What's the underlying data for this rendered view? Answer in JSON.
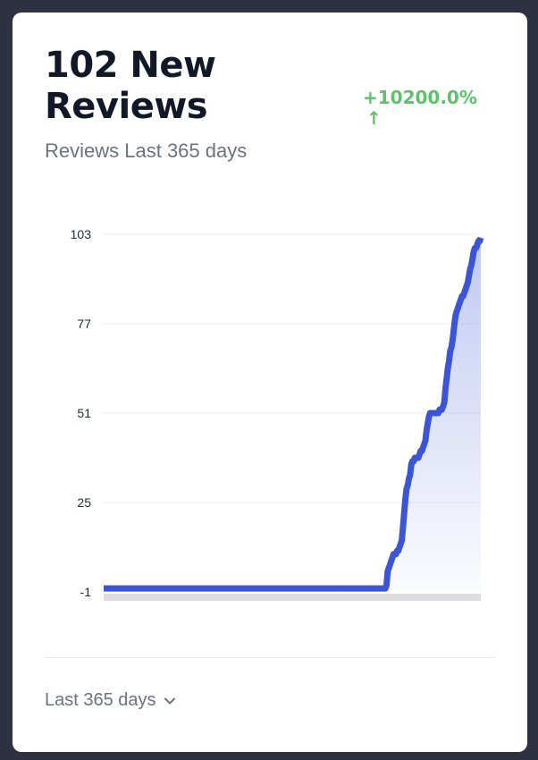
{
  "header": {
    "title": "102 New Reviews",
    "change": "+10200.0%",
    "change_arrow": "↑",
    "subtitle": "Reviews Last 365 days"
  },
  "footer": {
    "range_label": "Last 365 days"
  },
  "colors": {
    "line": "#3b55d6",
    "change_positive": "#5cc36a"
  },
  "chart_data": {
    "type": "area",
    "title": "",
    "xlabel": "",
    "ylabel": "",
    "ylim": [
      -1,
      103
    ],
    "yticks": [
      -1,
      25,
      51,
      77,
      103
    ],
    "grid": true,
    "legend": "none",
    "series": [
      {
        "values": [
          0,
          0,
          0,
          0,
          0,
          0,
          0,
          0,
          0,
          0,
          0,
          0,
          0,
          0,
          0,
          0,
          0,
          0,
          0,
          0,
          0,
          0,
          0,
          0,
          0,
          0,
          0,
          0,
          0,
          0,
          0,
          0,
          0,
          0,
          0,
          0,
          0,
          0,
          0,
          0,
          0,
          0,
          0,
          0,
          0,
          0,
          0,
          0,
          0,
          0,
          0,
          0,
          0,
          0,
          0,
          0,
          0,
          0,
          0,
          0,
          0,
          0,
          0,
          0,
          0,
          0,
          0,
          0,
          0,
          0,
          0,
          0,
          0,
          0,
          0,
          0,
          0,
          0,
          0,
          0,
          0,
          0,
          0,
          0,
          0,
          0,
          0,
          0,
          0,
          0,
          0,
          0,
          0,
          0,
          0,
          0,
          0,
          0,
          0,
          0,
          0,
          0,
          0,
          0,
          0,
          0,
          0,
          0,
          0,
          0,
          0,
          0,
          0,
          0,
          0,
          0,
          0,
          0,
          0,
          0,
          0,
          0,
          0,
          0,
          0,
          0,
          0,
          0,
          0,
          0,
          0,
          0,
          0,
          0,
          0,
          0,
          0,
          0,
          0,
          0,
          0,
          0,
          0,
          0,
          0,
          0,
          0,
          0,
          0,
          0,
          0,
          0,
          0,
          0,
          0,
          0,
          0,
          0,
          0,
          0,
          0,
          0,
          0,
          0,
          0,
          0,
          0,
          0,
          0,
          0,
          0,
          0,
          0,
          0,
          0,
          0,
          0,
          0,
          0,
          0,
          0,
          0,
          0,
          0,
          0,
          0,
          0,
          0,
          0,
          0,
          0,
          0,
          0,
          0,
          0,
          0,
          0,
          0,
          0,
          0,
          0,
          0,
          0,
          0,
          0,
          0,
          0,
          0,
          0,
          0,
          0,
          0,
          0,
          0,
          0,
          0,
          0,
          0,
          0,
          0,
          0,
          0,
          0,
          0,
          0,
          0,
          0,
          0,
          0,
          0,
          0,
          0,
          0,
          0,
          0,
          0,
          0,
          0,
          0,
          0,
          1,
          5,
          6,
          7,
          8,
          9,
          10,
          10,
          10,
          11,
          11,
          12,
          13,
          14,
          18,
          22,
          26,
          29,
          30,
          32,
          33,
          36,
          37,
          37,
          38,
          38,
          38,
          38,
          39,
          40,
          40,
          41,
          42,
          43,
          46,
          48,
          50,
          51,
          51,
          51,
          51,
          51,
          51,
          51,
          51,
          52,
          52,
          52,
          53,
          54,
          58,
          61,
          64,
          66,
          69,
          70,
          72,
          75,
          78,
          80,
          81,
          82,
          83,
          84,
          85,
          85,
          86,
          87,
          88,
          89,
          91,
          93,
          94,
          96,
          98,
          99,
          99,
          100,
          101,
          101,
          102
        ]
      }
    ]
  }
}
